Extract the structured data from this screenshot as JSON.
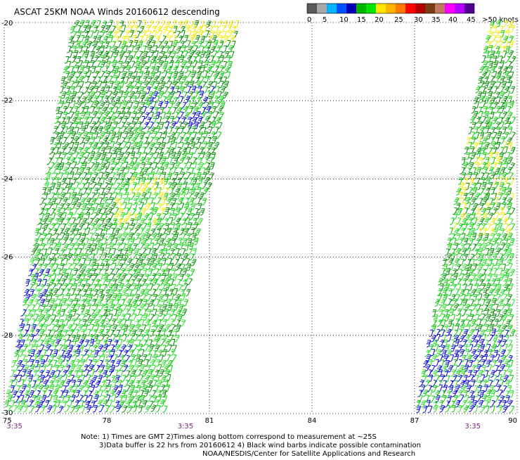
{
  "title": "ASCAT 25KM NOAA Winds 20160612 descending",
  "colorbar": {
    "colors": [
      "#5a5a5a",
      "#a8a8a8",
      "#00b4ff",
      "#0050ff",
      "#0000b4",
      "#00b400",
      "#00e600",
      "#ffe600",
      "#ffb400",
      "#ff7800",
      "#ff0000",
      "#b40000",
      "#7a3c14",
      "#c07860",
      "#ff00ff",
      "#b400ff",
      "#500090"
    ],
    "tick_labels": [
      "0",
      "5",
      "10",
      "15",
      "20",
      "25",
      "30",
      "35",
      "40",
      "45",
      ">50 knots"
    ]
  },
  "notes": [
    "Note: 1) Times are GMT 2)Times along bottom correspond to measurement at ~25S",
    "3)Data buffer is 22 hrs from 20160612 4) Black wind barbs indicate possible contamination",
    "NOAA/NESDIS/Center for Satellite Applications and Research"
  ],
  "chart_data": {
    "type": "scatter",
    "title": "ASCAT 25KM NOAA Winds 20160612 descending",
    "xlabel": "",
    "ylabel": "",
    "xlim": [
      75,
      90
    ],
    "ylim": [
      -30,
      -20
    ],
    "x_ticks": [
      "75",
      "78",
      "81",
      "84",
      "87",
      "90"
    ],
    "y_ticks": [
      "-20",
      "-22",
      "-24",
      "-26",
      "-28",
      "-30"
    ],
    "time_labels": [
      {
        "x": 75.3,
        "text": "3:35"
      },
      {
        "x": 80.3,
        "text": "3:35"
      },
      {
        "x": 88.7,
        "text": "3:35"
      }
    ],
    "grid": true,
    "gridline_values": {
      "x": [
        78,
        81,
        84,
        87
      ],
      "y": [
        -22,
        -24,
        -26,
        -28
      ]
    },
    "swaths": [
      {
        "top_left_lon": 77.0,
        "top_right_lon": 82.0,
        "bottom_left_lon": 75.0,
        "bottom_right_lon": 79.8,
        "lat_top": -20.0,
        "lat_bottom": -30.0
      },
      {
        "top_left_lon": 89.2,
        "top_right_lon": 90.0,
        "bottom_left_lon": 87.0,
        "bottom_right_lon": 90.0,
        "lat_top": -20.0,
        "lat_bottom": -30.0
      }
    ],
    "wind_speed_colors": {
      "blue": "#0000d8",
      "dark_green": "#008c00",
      "green": "#00cc00",
      "light_green": "#22e022",
      "yellow": "#f0e800"
    }
  }
}
